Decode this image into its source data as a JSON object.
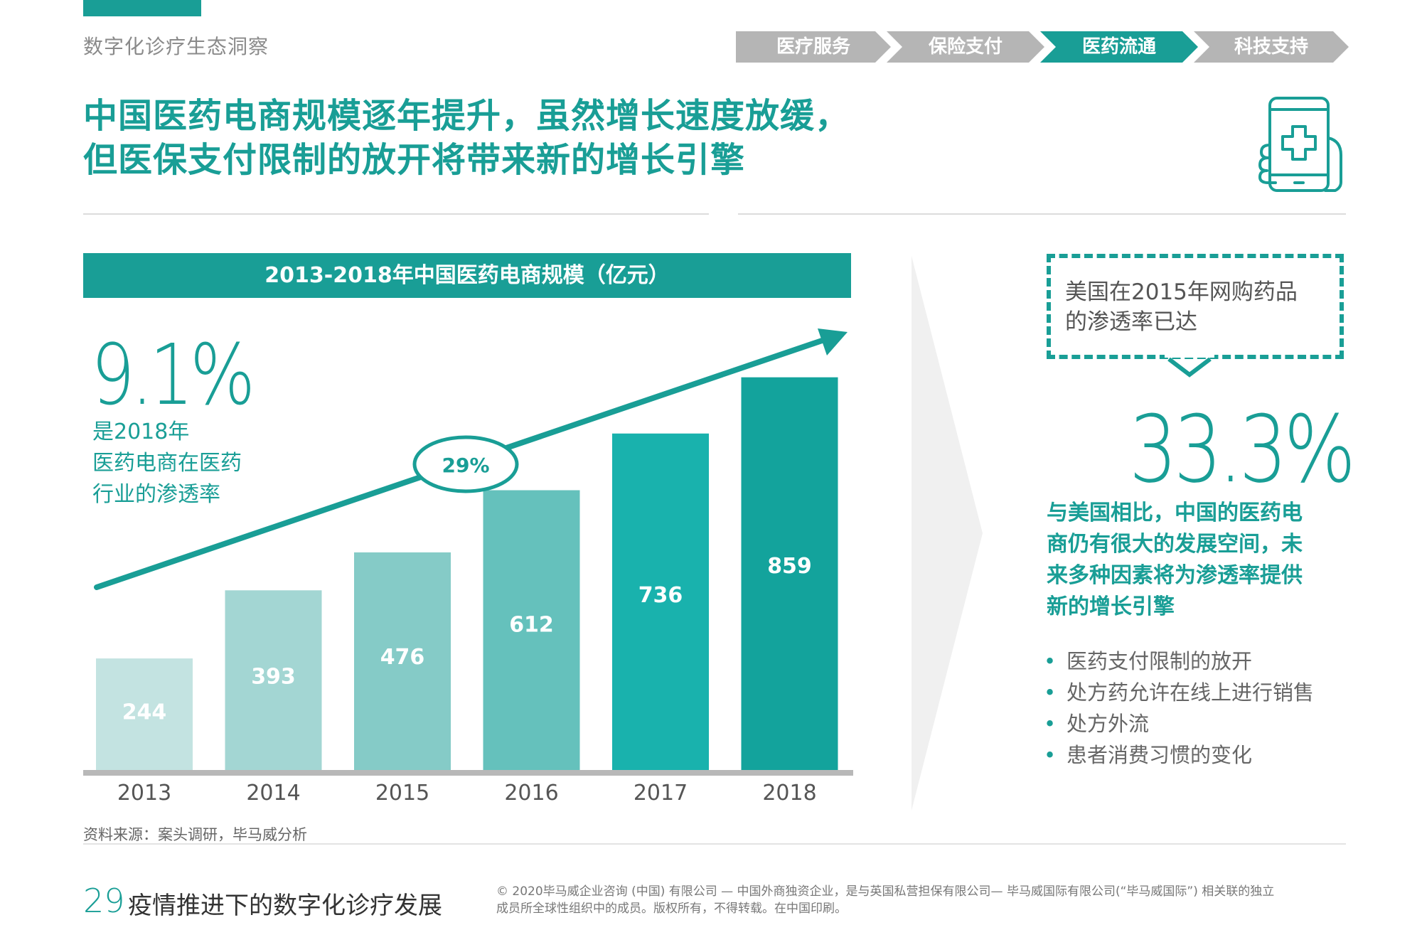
{
  "header": {
    "label": "数字化诊疗生态洞察"
  },
  "nav": {
    "items": [
      "医疗服务",
      "保险支付",
      "医药流通",
      "科技支持"
    ],
    "active_index": 2,
    "active_color": "#199e96",
    "inactive_color": "#b5b5b5"
  },
  "headline": {
    "line1": "中国医药电商规模逐年提升，虽然增长速度放缓，",
    "line2": "但医保支付限制的放开将带来新的增长引擎"
  },
  "left_stat": {
    "value": "9.1%",
    "desc_line1": "是2018年",
    "desc_line2": "医药电商在医药",
    "desc_line3": "行业的渗透率"
  },
  "cagr": {
    "label": "29%"
  },
  "chart_data": {
    "type": "bar",
    "title": "2013-2018年中国医药电商规模（亿元）",
    "categories": [
      "2013",
      "2014",
      "2015",
      "2016",
      "2017",
      "2018"
    ],
    "values": [
      244,
      393,
      476,
      612,
      736,
      859
    ],
    "value_labels": [
      "244",
      "393",
      "476",
      "612",
      "736",
      "859"
    ],
    "bar_colors": [
      "#c3e3e1",
      "#a3d6d3",
      "#85cbc7",
      "#65c1bc",
      "#19b2ad",
      "#13a39c"
    ],
    "ylim": [
      0,
      1000
    ],
    "annotation": "29%",
    "xlabel": "",
    "ylabel": ""
  },
  "callout": {
    "line1": "美国在2015年网购药品",
    "line2": "的渗透率已达",
    "value": "33.3%"
  },
  "comparison": {
    "line1": "与美国相比，中国的医药电",
    "line2": "商仍有很大的发展空间，未",
    "line3": "来多种因素将为渗透率提供",
    "line4": "新的增长引擎"
  },
  "bullets": [
    "医药支付限制的放开",
    "处方药允许在线上进行销售",
    "处方外流",
    "患者消费习惯的变化"
  ],
  "source": "资料来源：案头调研，毕马威分析",
  "footer": {
    "page_number": "29",
    "title": "疫情推进下的数字化诊疗发展",
    "copyright_line1": "© 2020毕马威企业咨询 (中国) 有限公司 — 中国外商独资企业，是与英国私营担保有限公司— 毕马威国际有限公司(“毕马威国际”) 相关联的独立",
    "copyright_line2": "成员所全球性组织中的成员。版权所有，不得转载。在中国印刷。"
  },
  "colors": {
    "accent": "#199e96",
    "text": "#555555"
  }
}
